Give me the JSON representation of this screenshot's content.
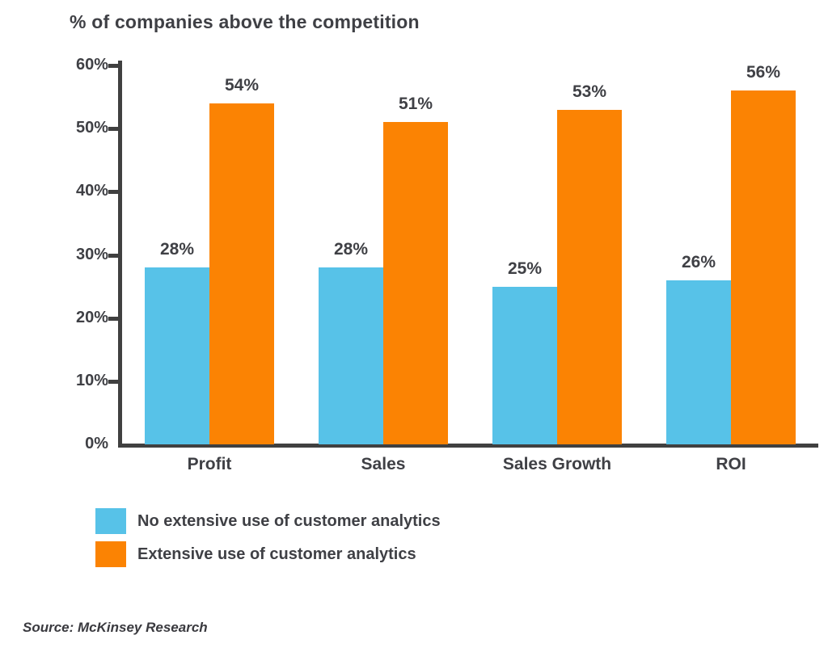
{
  "title": "% of companies above the competition",
  "source": "Source: McKinsey Research",
  "colors": {
    "blue": "#57C2E8",
    "orange": "#FB8303",
    "text": "#3F4045",
    "axis": "#404040",
    "background": "#FFFFFF"
  },
  "legend": [
    {
      "label": "No extensive use of customer analytics",
      "color": "#57C2E8"
    },
    {
      "label": "Extensive use of customer analytics",
      "color": "#FB8303"
    }
  ],
  "chart_data": {
    "type": "bar",
    "title": "% of companies above the competition",
    "categories": [
      "Profit",
      "Sales",
      "Sales Growth",
      "ROI"
    ],
    "series": [
      {
        "name": "No extensive use of customer analytics",
        "color": "#57C2E8",
        "values": [
          28,
          28,
          25,
          26
        ]
      },
      {
        "name": "Extensive use of customer analytics",
        "color": "#FB8303",
        "values": [
          54,
          51,
          53,
          56
        ]
      }
    ],
    "data_labels": [
      "28%",
      "54%",
      "28%",
      "51%",
      "25%",
      "53%",
      "26%",
      "56%"
    ],
    "xlabel": "",
    "ylabel": "",
    "ylim": [
      0,
      60
    ],
    "yticks": [
      "0%",
      "10%",
      "20%",
      "30%",
      "40%",
      "50%",
      "60%"
    ],
    "grid": false,
    "legend_position": "bottom-left"
  }
}
